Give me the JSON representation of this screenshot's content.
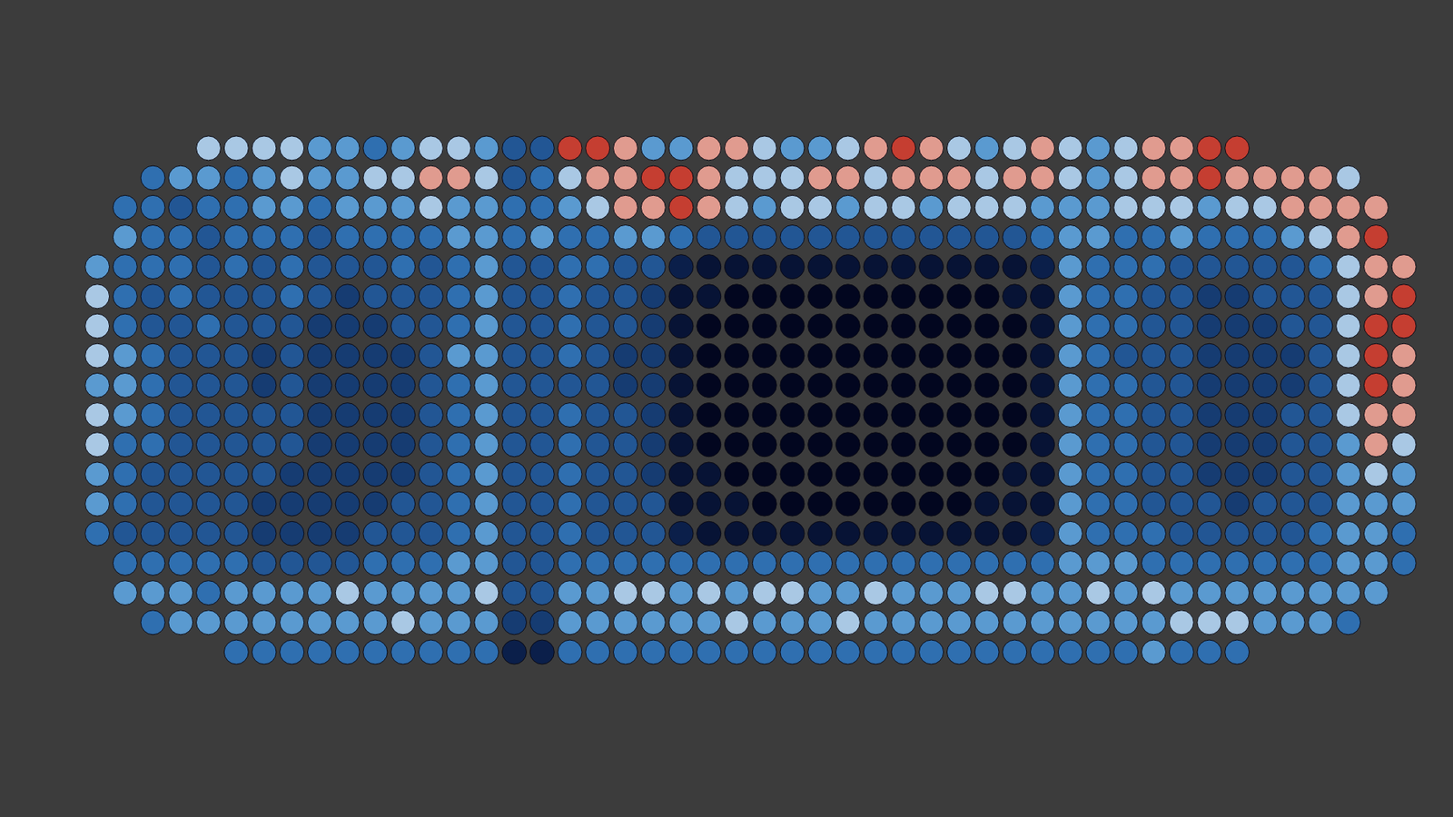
{
  "chart_data": {
    "type": "heatmap",
    "tick_labels": false,
    "grid": false,
    "xlim": [
      0,
      1568
    ],
    "ylim": [
      882,
      0
    ],
    "zlim": [
      0,
      10
    ],
    "x": [
      105,
      135,
      165,
      195,
      225,
      255,
      285,
      315,
      345,
      375,
      405,
      435,
      465,
      495,
      525,
      555,
      585,
      615,
      645,
      675,
      705,
      735,
      765,
      795,
      825,
      855,
      885,
      915,
      945,
      975,
      1005,
      1035,
      1065,
      1095,
      1125,
      1155,
      1185,
      1215,
      1245,
      1275,
      1305,
      1335,
      1365,
      1395,
      1425,
      1455,
      1485,
      1515
    ],
    "y": [
      160,
      192,
      224,
      256,
      288,
      320,
      352,
      384,
      416,
      448,
      480,
      512,
      544,
      576,
      608,
      640,
      672,
      704
    ],
    "cells": [
      [
        null,
        null,
        null,
        null,
        7,
        7,
        7,
        7,
        6,
        6,
        5,
        6,
        7,
        7,
        6,
        4,
        4,
        9,
        9,
        8,
        6,
        6,
        8,
        8,
        7,
        6,
        6,
        7,
        8,
        9,
        8,
        7,
        6,
        7,
        8,
        7,
        6,
        7,
        8,
        8,
        9,
        9,
        null,
        null,
        null,
        null,
        null,
        null
      ],
      [
        null,
        null,
        5,
        6,
        6,
        5,
        6,
        7,
        6,
        6,
        7,
        7,
        8,
        8,
        7,
        4,
        5,
        7,
        8,
        8,
        9,
        9,
        8,
        7,
        7,
        7,
        8,
        8,
        7,
        8,
        8,
        8,
        7,
        8,
        8,
        7,
        6,
        7,
        8,
        8,
        9,
        8,
        8,
        8,
        8,
        7,
        null,
        null
      ],
      [
        null,
        5,
        5,
        4,
        5,
        5,
        6,
        6,
        5,
        6,
        6,
        6,
        7,
        6,
        6,
        5,
        5,
        6,
        7,
        8,
        8,
        9,
        8,
        7,
        6,
        7,
        7,
        6,
        7,
        7,
        6,
        7,
        7,
        7,
        6,
        6,
        6,
        7,
        7,
        7,
        6,
        7,
        7,
        8,
        8,
        8,
        8,
        null
      ],
      [
        null,
        6,
        5,
        5,
        4,
        5,
        5,
        5,
        4,
        5,
        5,
        5,
        5,
        6,
        6,
        5,
        6,
        5,
        5,
        6,
        6,
        5,
        4,
        4,
        4,
        4,
        4,
        4,
        4,
        4,
        4,
        4,
        4,
        4,
        5,
        6,
        6,
        5,
        5,
        6,
        5,
        5,
        5,
        6,
        7,
        8,
        9,
        null
      ],
      [
        6,
        5,
        5,
        5,
        4,
        5,
        4,
        5,
        4,
        4,
        4,
        5,
        4,
        5,
        6,
        4,
        4,
        5,
        5,
        4,
        4,
        2,
        1,
        1,
        1,
        1,
        1,
        1,
        1,
        1,
        1,
        1,
        1,
        1,
        2,
        6,
        5,
        5,
        5,
        4,
        4,
        4,
        4,
        4,
        5,
        7,
        8,
        8
      ],
      [
        7,
        5,
        4,
        5,
        4,
        4,
        4,
        5,
        4,
        3,
        4,
        4,
        4,
        5,
        6,
        4,
        4,
        5,
        4,
        4,
        3,
        1,
        1,
        0,
        0,
        0,
        0,
        0,
        0,
        0,
        0,
        0,
        0,
        1,
        1,
        6,
        5,
        5,
        4,
        4,
        3,
        3,
        4,
        4,
        4,
        7,
        8,
        9
      ],
      [
        7,
        5,
        4,
        4,
        5,
        4,
        4,
        4,
        3,
        3,
        3,
        4,
        4,
        5,
        6,
        4,
        4,
        5,
        4,
        4,
        3,
        1,
        0,
        0,
        0,
        0,
        0,
        0,
        0,
        0,
        0,
        0,
        0,
        0,
        1,
        6,
        5,
        5,
        4,
        4,
        3,
        3,
        3,
        4,
        4,
        7,
        9,
        9
      ],
      [
        7,
        6,
        5,
        4,
        4,
        4,
        3,
        4,
        3,
        3,
        3,
        3,
        4,
        6,
        6,
        4,
        4,
        5,
        4,
        3,
        3,
        1,
        0,
        0,
        0,
        0,
        0,
        0,
        0,
        0,
        0,
        0,
        0,
        0,
        1,
        6,
        5,
        4,
        4,
        4,
        3,
        3,
        3,
        3,
        4,
        7,
        9,
        8
      ],
      [
        6,
        6,
        5,
        4,
        4,
        4,
        3,
        4,
        3,
        3,
        3,
        3,
        4,
        5,
        6,
        4,
        4,
        4,
        4,
        3,
        3,
        1,
        0,
        0,
        0,
        0,
        0,
        0,
        0,
        0,
        0,
        0,
        0,
        0,
        1,
        6,
        5,
        5,
        4,
        4,
        3,
        3,
        3,
        3,
        4,
        7,
        9,
        8
      ],
      [
        7,
        6,
        5,
        4,
        4,
        4,
        4,
        4,
        3,
        3,
        3,
        3,
        4,
        5,
        6,
        4,
        4,
        5,
        4,
        4,
        3,
        1,
        0,
        0,
        0,
        0,
        0,
        0,
        0,
        0,
        0,
        0,
        0,
        0,
        1,
        6,
        5,
        5,
        4,
        4,
        3,
        3,
        3,
        4,
        4,
        7,
        8,
        8
      ],
      [
        7,
        5,
        5,
        4,
        4,
        4,
        4,
        4,
        3,
        3,
        3,
        3,
        4,
        5,
        6,
        4,
        4,
        5,
        4,
        4,
        3,
        1,
        0,
        0,
        0,
        0,
        0,
        0,
        0,
        0,
        0,
        0,
        0,
        0,
        1,
        6,
        5,
        5,
        4,
        4,
        3,
        3,
        3,
        4,
        4,
        6,
        8,
        7
      ],
      [
        6,
        5,
        4,
        4,
        4,
        4,
        4,
        3,
        3,
        3,
        3,
        3,
        4,
        5,
        6,
        4,
        4,
        5,
        4,
        4,
        3,
        1,
        1,
        0,
        0,
        0,
        0,
        0,
        0,
        0,
        0,
        0,
        0,
        1,
        1,
        6,
        5,
        5,
        4,
        4,
        3,
        3,
        3,
        4,
        4,
        6,
        7,
        6
      ],
      [
        6,
        5,
        4,
        4,
        4,
        4,
        3,
        3,
        3,
        3,
        3,
        4,
        4,
        5,
        6,
        4,
        4,
        5,
        4,
        4,
        4,
        1,
        1,
        1,
        0,
        0,
        0,
        0,
        0,
        0,
        0,
        0,
        1,
        1,
        1,
        6,
        5,
        5,
        4,
        4,
        4,
        3,
        4,
        4,
        4,
        6,
        6,
        6
      ],
      [
        5,
        4,
        4,
        4,
        4,
        4,
        3,
        3,
        3,
        3,
        4,
        4,
        4,
        5,
        6,
        4,
        4,
        5,
        4,
        4,
        4,
        2,
        1,
        1,
        1,
        1,
        1,
        1,
        1,
        1,
        1,
        1,
        1,
        1,
        2,
        6,
        5,
        5,
        5,
        4,
        4,
        4,
        4,
        4,
        5,
        6,
        6,
        5
      ],
      [
        null,
        5,
        5,
        5,
        5,
        5,
        4,
        4,
        4,
        4,
        5,
        5,
        5,
        6,
        6,
        4,
        4,
        5,
        5,
        5,
        5,
        5,
        5,
        5,
        5,
        5,
        5,
        5,
        5,
        5,
        5,
        5,
        5,
        5,
        5,
        6,
        6,
        6,
        5,
        5,
        5,
        5,
        5,
        5,
        5,
        6,
        6,
        5
      ],
      [
        null,
        6,
        6,
        6,
        5,
        6,
        6,
        6,
        6,
        7,
        6,
        6,
        6,
        6,
        7,
        4,
        4,
        6,
        6,
        7,
        7,
        6,
        7,
        6,
        7,
        7,
        6,
        6,
        7,
        6,
        6,
        6,
        7,
        7,
        6,
        6,
        7,
        6,
        7,
        6,
        6,
        6,
        6,
        6,
        6,
        6,
        6,
        null
      ],
      [
        null,
        null,
        5,
        6,
        6,
        6,
        6,
        6,
        6,
        6,
        6,
        7,
        6,
        6,
        6,
        3,
        3,
        6,
        6,
        6,
        6,
        6,
        6,
        7,
        6,
        6,
        6,
        7,
        6,
        6,
        6,
        6,
        6,
        6,
        6,
        6,
        6,
        6,
        6,
        7,
        7,
        7,
        6,
        6,
        6,
        5,
        null,
        null
      ],
      [
        null,
        null,
        null,
        null,
        null,
        5,
        5,
        5,
        5,
        5,
        5,
        5,
        5,
        5,
        5,
        2,
        2,
        5,
        5,
        5,
        5,
        5,
        5,
        5,
        5,
        5,
        5,
        5,
        5,
        5,
        5,
        5,
        5,
        5,
        5,
        5,
        5,
        5,
        6,
        5,
        5,
        5,
        null,
        null,
        null,
        null,
        null,
        null
      ]
    ]
  }
}
